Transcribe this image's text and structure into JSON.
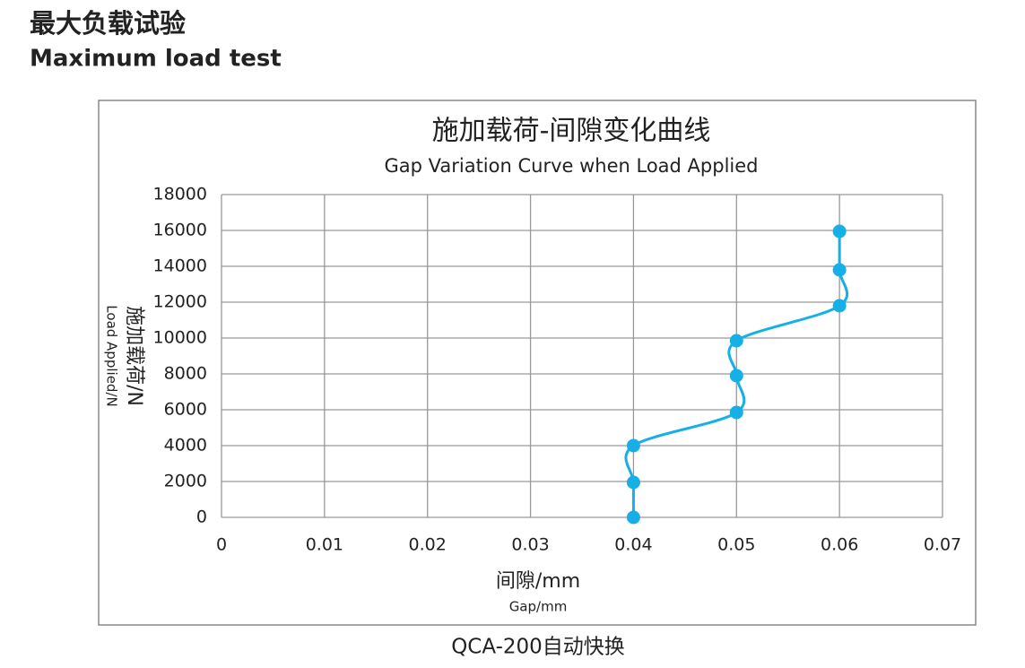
{
  "header": {
    "title_cn": "最大负载试验",
    "title_en": "Maximum load test"
  },
  "chart_data": {
    "type": "line",
    "title": "施加载荷-间隙变化曲线",
    "subtitle": "Gap Variation Curve when Load Applied",
    "x_label": "间隙/mm",
    "x_label_en": "Gap/mm",
    "y_label": "施加载荷/N",
    "y_label_en": "Load Applied/N",
    "x": [
      0.04,
      0.04,
      0.04,
      0.05,
      0.05,
      0.05,
      0.06,
      0.06,
      0.06
    ],
    "values": [
      0,
      1950,
      4000,
      5850,
      7900,
      9850,
      11800,
      13800,
      15950
    ],
    "color": "#16afe6",
    "xlim": [
      0,
      0.07
    ],
    "xticks": [
      0,
      0.01,
      0.02,
      0.03,
      0.04,
      0.05,
      0.06,
      0.07
    ],
    "ylim": [
      0,
      18000
    ],
    "yticks": [
      0,
      2000,
      4000,
      6000,
      8000,
      10000,
      12000,
      14000,
      16000,
      18000
    ],
    "grid": true
  },
  "caption": "QCA-200自动快换"
}
